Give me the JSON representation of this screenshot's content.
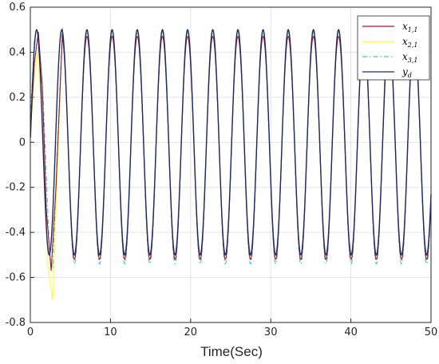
{
  "chart_data": {
    "type": "line",
    "title": "",
    "xlabel": "Time(Sec)",
    "ylabel": "",
    "xlim": [
      0,
      50
    ],
    "ylim": [
      -0.8,
      0.6
    ],
    "xticks": [
      "0",
      "10",
      "20",
      "30",
      "40",
      "50"
    ],
    "yticks": [
      "0.6",
      "0.4",
      "0.2",
      "0",
      "-0.2",
      "-0.4",
      "-0.6",
      "-0.8"
    ],
    "grid": true,
    "legend_position": "top-right",
    "period": 3.14,
    "series": [
      {
        "name": "x_{1,1}",
        "label": "x",
        "subscript": "1,1",
        "color": "#a2142f",
        "dash": "solid",
        "amplitude_positive": 0.47,
        "amplitude_negative": 0.52,
        "transient": [
          [
            0,
            0.04
          ],
          [
            0.5,
            0.35
          ],
          [
            1.0,
            0.49
          ],
          [
            1.5,
            0.25
          ],
          [
            2.0,
            -0.3
          ],
          [
            2.6,
            -0.57
          ],
          [
            3.2,
            -0.2
          ],
          [
            4.0,
            0.48
          ]
        ]
      },
      {
        "name": "x_{2,1}",
        "label": "x",
        "subscript": "2,1",
        "color": "#ffff33",
        "dash": "solid",
        "amplitude_positive": 0.48,
        "amplitude_negative": 0.52,
        "transient": [
          [
            0,
            0.02
          ],
          [
            0.5,
            0.3
          ],
          [
            0.9,
            0.4
          ],
          [
            1.5,
            0.1
          ],
          [
            2.2,
            -0.55
          ],
          [
            2.8,
            -0.7
          ],
          [
            3.3,
            -0.2
          ],
          [
            4.0,
            0.5
          ]
        ]
      },
      {
        "name": "x_{3,1}",
        "label": "x",
        "subscript": "3,1",
        "color": "#33cccc",
        "dash": "dashdot",
        "amplitude_positive": 0.49,
        "amplitude_negative": 0.54,
        "transient": [
          [
            0,
            0.1
          ],
          [
            0.5,
            0.45
          ],
          [
            1.0,
            0.42
          ],
          [
            1.6,
            0.2
          ],
          [
            2.4,
            -0.5
          ],
          [
            2.8,
            -0.56
          ],
          [
            3.3,
            -0.1
          ],
          [
            4.0,
            0.51
          ]
        ]
      },
      {
        "name": "y_d",
        "label": "y",
        "subscript": "d",
        "color": "#1c2a6b",
        "dash": "solid",
        "amplitude_positive": 0.5,
        "amplitude_negative": 0.5,
        "transient": []
      }
    ]
  }
}
